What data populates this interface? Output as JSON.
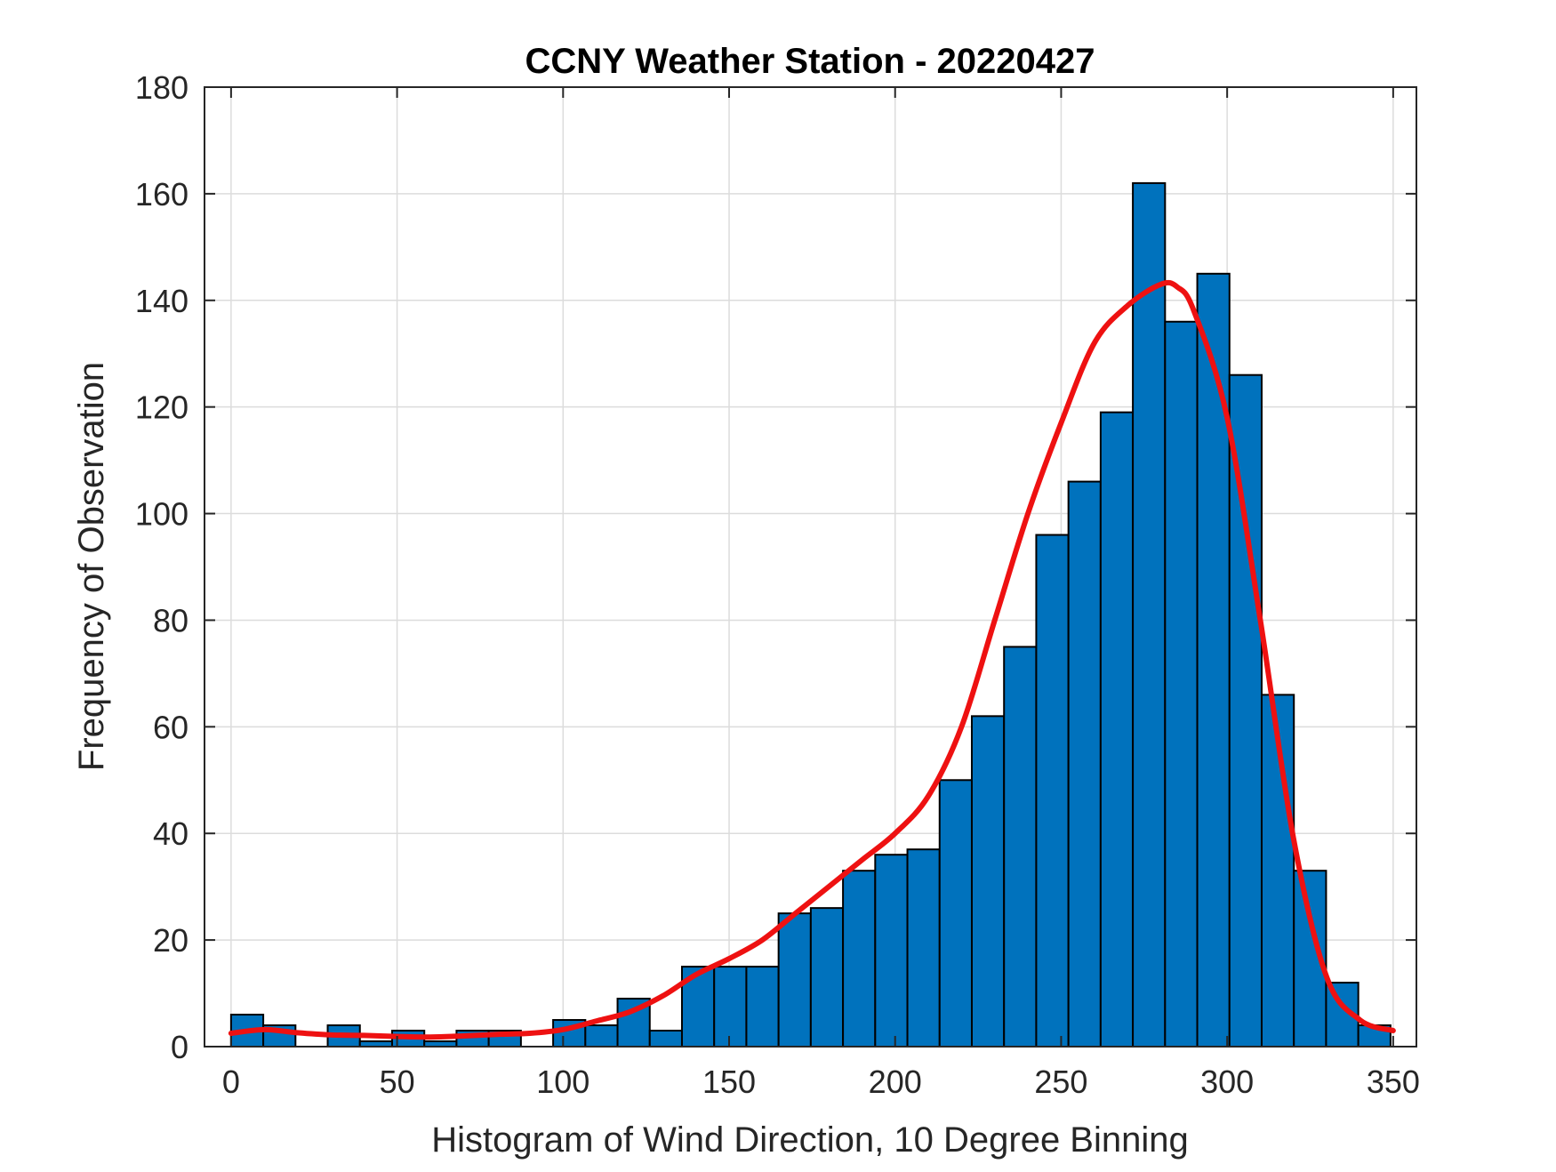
{
  "chart_data": {
    "type": "bar",
    "title": "CCNY Weather Station - 20220427",
    "xlabel": "Histogram of Wind Direction, 10 Degree Binning",
    "ylabel": "Frequency of Observation",
    "xlim": [
      -8,
      357
    ],
    "ylim": [
      0,
      180
    ],
    "x_ticks": [
      0,
      50,
      100,
      150,
      200,
      250,
      300,
      350
    ],
    "y_ticks": [
      0,
      20,
      40,
      60,
      80,
      100,
      120,
      140,
      160,
      180
    ],
    "grid": true,
    "bin_width": 9.7,
    "bin_start": 0,
    "series": [
      {
        "type": "histogram",
        "values": [
          6,
          4,
          0,
          4,
          1,
          3,
          1,
          3,
          3,
          0,
          5,
          4,
          9,
          3,
          15,
          15,
          15,
          25,
          26,
          33,
          36,
          37,
          50,
          62,
          75,
          96,
          106,
          119,
          162,
          136,
          145,
          126,
          66,
          33,
          12,
          4
        ],
        "color": "#0072BD"
      },
      {
        "type": "line",
        "x": [
          0,
          10,
          20,
          30,
          40,
          50,
          60,
          70,
          80,
          90,
          100,
          110,
          120,
          130,
          140,
          150,
          160,
          170,
          180,
          190,
          200,
          210,
          220,
          230,
          240,
          250,
          260,
          270,
          280,
          285,
          290,
          300,
          310,
          320,
          330,
          340,
          350
        ],
        "values": [
          2.5,
          3.2,
          2.6,
          2.2,
          2.1,
          1.9,
          1.8,
          2.0,
          2.3,
          2.5,
          3.2,
          4.8,
          6.5,
          9.5,
          13.5,
          16.5,
          20,
          25,
          30,
          35,
          40,
          47,
          60,
          80,
          100,
          117,
          132,
          139,
          143,
          142.5,
          138,
          118,
          80,
          39,
          13,
          5,
          3
        ],
        "color": "#EE1111"
      }
    ]
  }
}
